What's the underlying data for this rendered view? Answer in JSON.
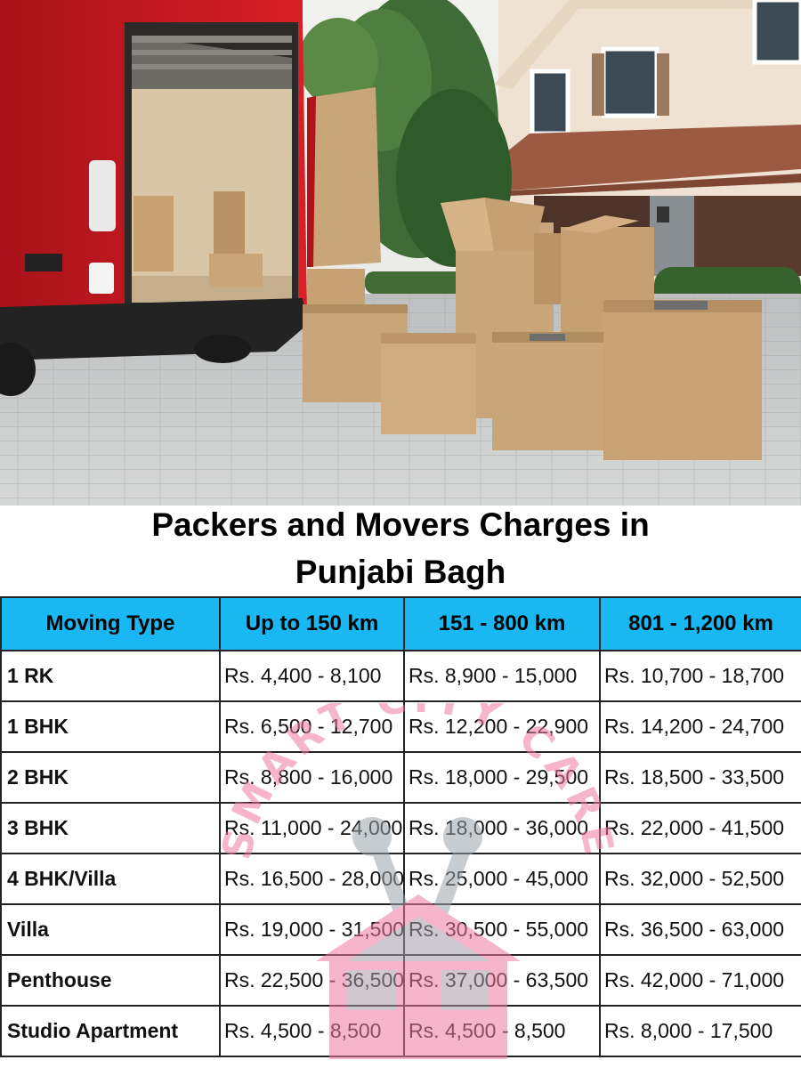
{
  "title": {
    "line1": "Packers and Movers Charges in",
    "line2": "Punjabi Bagh"
  },
  "table": {
    "headers": [
      "Moving Type",
      "Up to 150 km",
      "151 - 800 km",
      "801 - 1,200 km"
    ],
    "rows": [
      {
        "type": "1 RK",
        "c1": "Rs. 4,400 - 8,100",
        "c2": "Rs. 8,900 - 15,000",
        "c3": "Rs. 10,700 - 18,700"
      },
      {
        "type": "1 BHK",
        "c1": "Rs. 6,500 - 12,700",
        "c2": "Rs. 12,200 - 22,900",
        "c3": "Rs. 14,200 - 24,700"
      },
      {
        "type": "2 BHK",
        "c1": "Rs. 8,800 - 16,000",
        "c2": "Rs. 18,000 - 29,500",
        "c3": "Rs. 18,500 - 33,500"
      },
      {
        "type": "3 BHK",
        "c1": "Rs. 11,000 - 24,000",
        "c2": "Rs. 18,000 - 36,000",
        "c3": "Rs. 22,000 - 41,500"
      },
      {
        "type": "4 BHK/Villa",
        "c1": "Rs. 16,500 - 28,000",
        "c2": "Rs. 25,000 - 45,000",
        "c3": "Rs. 32,000 - 52,500"
      },
      {
        "type": "Villa",
        "c1": "Rs. 19,000 - 31,500",
        "c2": "Rs. 30,500 - 55,000",
        "c3": "Rs. 36,500 - 63,000"
      },
      {
        "type": "Penthouse",
        "c1": "Rs. 22,500 - 36,500",
        "c2": "Rs. 37,000 - 63,500",
        "c3": "Rs. 42,000 - 71,000"
      },
      {
        "type": "Studio Apartment",
        "c1": "Rs. 4,500 - 8,500",
        "c2": "Rs. 4,500 - 8,500",
        "c3": "Rs. 8,000 - 17,500"
      }
    ]
  },
  "watermark": {
    "text": "SMART CITY CARE",
    "icon": "house-wrench-logo",
    "color": "#f07aa0",
    "color_secondary": "#9aa3ab"
  },
  "hero": {
    "icon": "moving-van-photo",
    "van_color": "#c8161d",
    "box_color": "#c9a57a"
  },
  "colors": {
    "header_bg": "#1ab8f3",
    "border": "#222222",
    "text": "#000000"
  }
}
